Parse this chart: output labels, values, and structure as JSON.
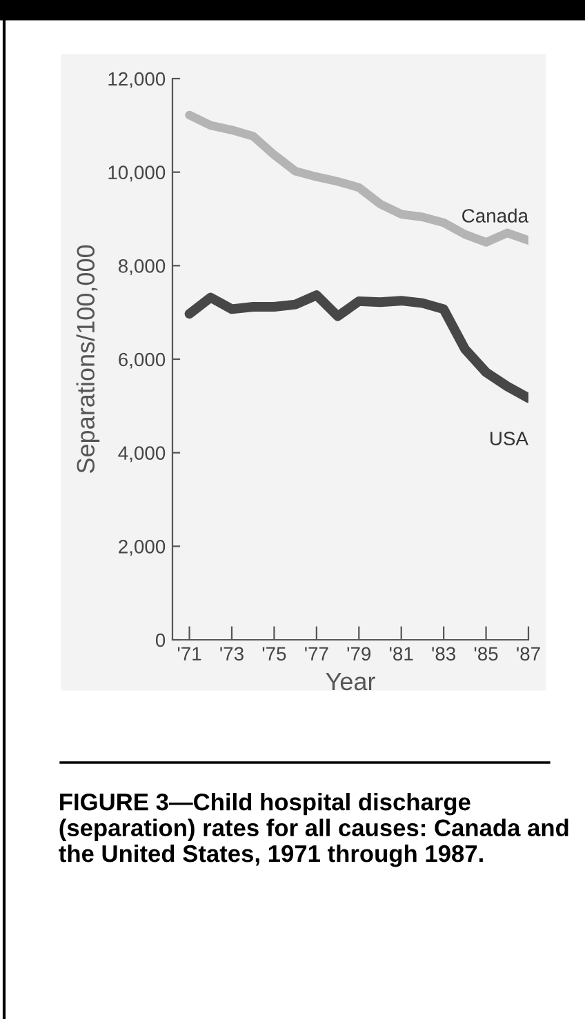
{
  "chart_data": {
    "type": "line",
    "title": "FIGURE 3—Child hospital discharge (separation) rates for all causes: Canada and the United States, 1971 through 1987.",
    "xlabel": "Year",
    "ylabel": "Separations/100,000",
    "x": [
      1971,
      1972,
      1973,
      1974,
      1975,
      1976,
      1977,
      1978,
      1979,
      1980,
      1981,
      1982,
      1983,
      1984,
      1985,
      1986,
      1987
    ],
    "series": [
      {
        "name": "Canada",
        "color": "#b4b4b4",
        "values": [
          11220,
          11000,
          10900,
          10770,
          10370,
          10020,
          9900,
          9800,
          9670,
          9320,
          9100,
          9040,
          8920,
          8670,
          8500,
          8700,
          8540
        ]
      },
      {
        "name": "USA",
        "color": "#474747",
        "values": [
          6970,
          7320,
          7070,
          7120,
          7120,
          7170,
          7370,
          6920,
          7240,
          7220,
          7250,
          7200,
          7070,
          6220,
          5720,
          5420,
          5170
        ]
      }
    ],
    "xlim": [
      1970.2,
      1987
    ],
    "ylim": [
      0,
      12000
    ],
    "xticks": [
      {
        "value": 1971,
        "label": "'71"
      },
      {
        "value": 1973,
        "label": "'73"
      },
      {
        "value": 1975,
        "label": "'75"
      },
      {
        "value": 1977,
        "label": "'77"
      },
      {
        "value": 1979,
        "label": "'79"
      },
      {
        "value": 1981,
        "label": "'81"
      },
      {
        "value": 1983,
        "label": "'83"
      },
      {
        "value": 1985,
        "label": "'85"
      },
      {
        "value": 1987,
        "label": "'87"
      }
    ],
    "yticks": [
      0,
      {
        "value": 2000,
        "label": "2,000"
      },
      {
        "value": 4000,
        "label": "4,000"
      },
      {
        "value": 6000,
        "label": "6,000"
      },
      {
        "value": 8000,
        "label": "8,000"
      },
      {
        "value": 10000,
        "label": "10,000"
      },
      {
        "value": 12000,
        "label": "12,000"
      }
    ],
    "grid": false,
    "legend": false,
    "marker": "none",
    "line_style": "solid"
  }
}
